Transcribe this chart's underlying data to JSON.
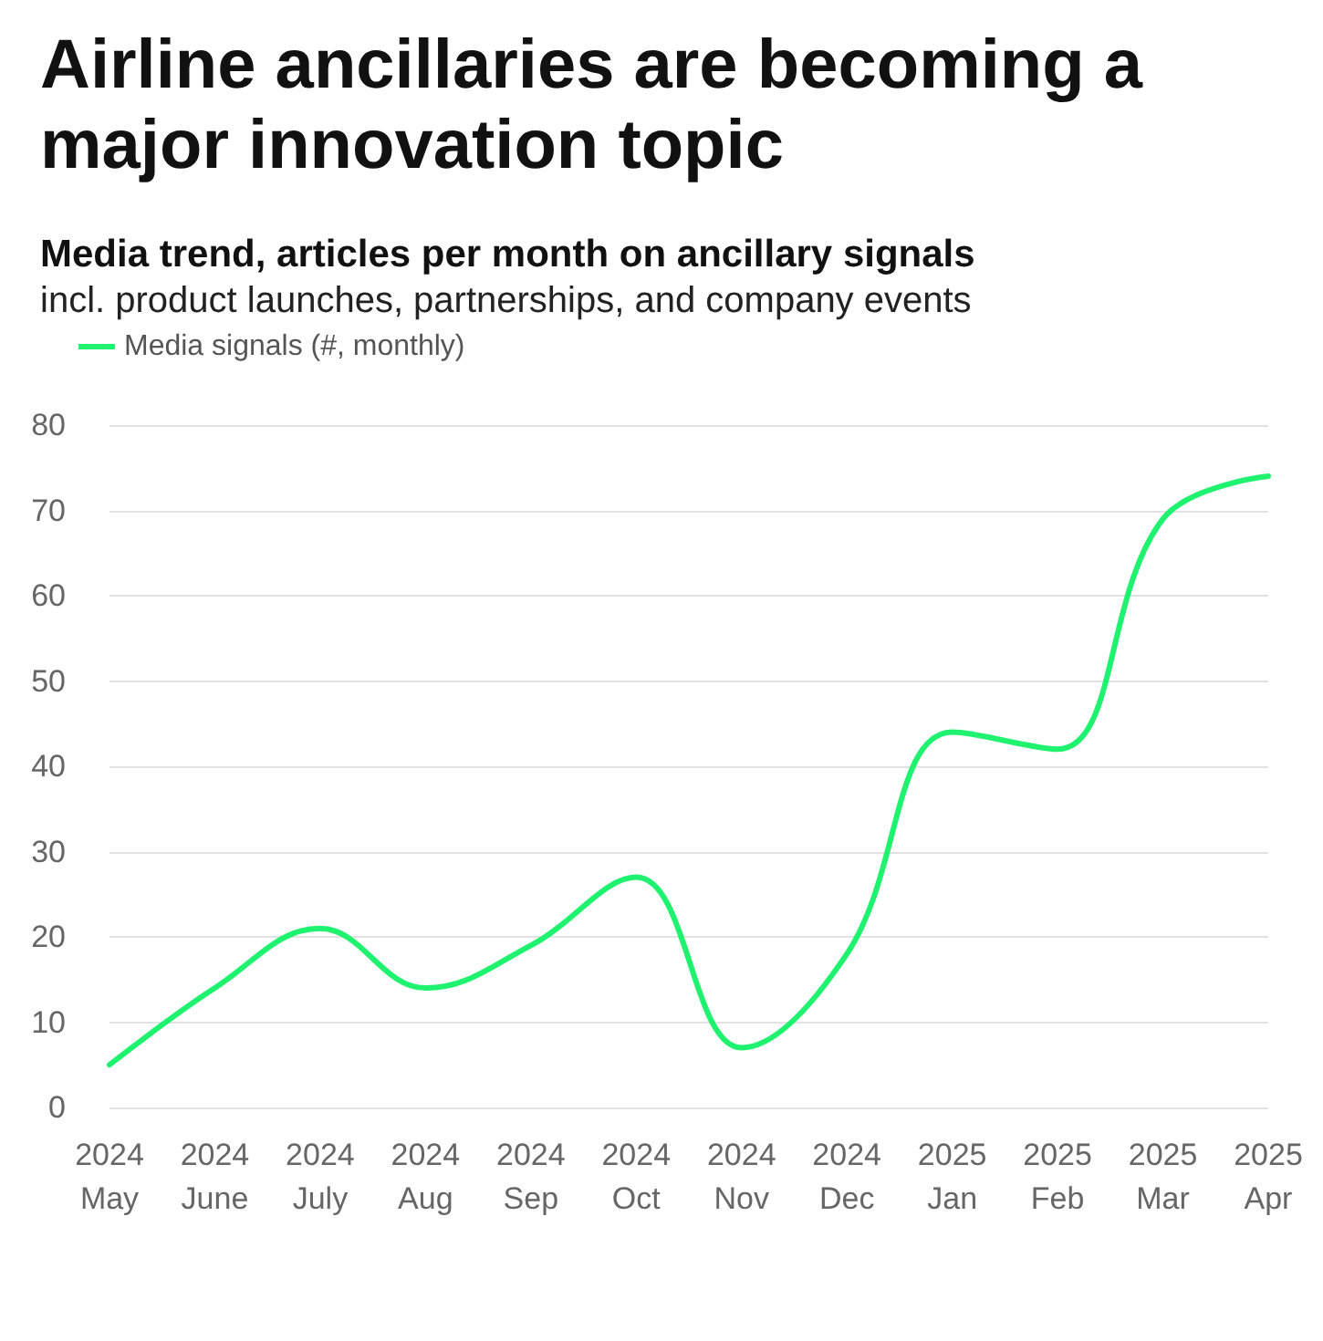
{
  "chart_data": {
    "type": "line",
    "title": "Airline ancillaries are becoming a major innovation topic",
    "subtitle": "Media trend, articles per month on ancillary signals",
    "annotations": [
      "incl. product launches, partnerships, and company events"
    ],
    "categories": [
      "2024\nMay",
      "2024\nJune",
      "2024\nJuly",
      "2024\nAug",
      "2024\nSep",
      "2024\nOct",
      "2024\nNov",
      "2024\nDec",
      "2025\nJan",
      "2025\nFeb",
      "2025\nMar",
      "2025\nApr"
    ],
    "series": [
      {
        "name": "Media signals (#, monthly)",
        "color": "#1ef26e",
        "values": [
          5,
          14,
          21,
          14,
          19,
          27,
          7,
          18,
          44,
          42,
          69,
          74
        ]
      }
    ],
    "ylim": [
      0,
      80
    ],
    "yticks": [
      0,
      10,
      20,
      30,
      40,
      50,
      60,
      70,
      80
    ],
    "grid": "y",
    "legend": "top left",
    "marker": "none",
    "line_style": "solid"
  }
}
